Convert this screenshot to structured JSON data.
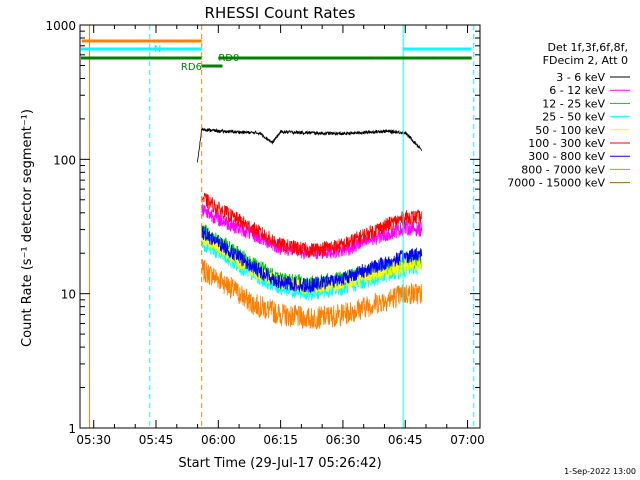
{
  "chart_data": {
    "type": "line",
    "title": "RHESSI Count Rates",
    "xlabel": "Start Time (29-Jul-17 05:26:42)",
    "ylabel": "Count Rate (s⁻¹ detector segment⁻¹)",
    "y_scale": "log",
    "xlim": [
      "05:26:42",
      "07:03:00"
    ],
    "ylim": [
      1,
      1000
    ],
    "x_ticks": [
      "05:30",
      "05:45",
      "06:00",
      "06:15",
      "06:30",
      "06:45",
      "07:00"
    ],
    "y_ticks": [
      "1",
      "10",
      "100",
      "1000"
    ],
    "grid": false,
    "legend_position": "top-right",
    "legend_header": [
      "Det 1f,3f,6f,8f,",
      "FDecim 2, Att 0"
    ],
    "footer_date": "1-Sep-2022 13:00",
    "series": [
      {
        "name": "3 - 6 keV",
        "color": "#000000",
        "x": [
          "05:55:00",
          "05:56:00",
          "06:00:00",
          "06:10:00",
          "06:13:00",
          "06:15:00",
          "06:30:00",
          "06:40:00",
          "06:45:00",
          "06:49:00"
        ],
        "values": [
          95,
          168,
          162,
          157,
          133,
          160,
          155,
          162,
          158,
          118
        ]
      },
      {
        "name": "6 - 12 keV",
        "color": "#ff00ff",
        "x": [
          "05:56:00",
          "06:00:00",
          "06:08:00",
          "06:15:00",
          "06:22:00",
          "06:30:00",
          "06:38:00",
          "06:45:00",
          "06:49:00"
        ],
        "values": [
          43,
          36,
          28,
          22,
          20,
          21,
          26,
          31,
          30
        ]
      },
      {
        "name": "12 - 25 keV",
        "color": "#00cc00",
        "x": [
          "05:56:00",
          "06:00:00",
          "06:08:00",
          "06:15:00",
          "06:22:00",
          "06:30:00",
          "06:38:00",
          "06:45:00",
          "06:49:00"
        ],
        "values": [
          30,
          25,
          17,
          13,
          12,
          13,
          15,
          17,
          18
        ]
      },
      {
        "name": "25 - 50 keV",
        "color": "#00ffff",
        "x": [
          "05:56:00",
          "06:00:00",
          "06:08:00",
          "06:15:00",
          "06:22:00",
          "06:30:00",
          "06:38:00",
          "06:45:00",
          "06:49:00"
        ],
        "values": [
          24,
          20,
          14,
          11,
          10,
          11,
          13,
          15,
          16
        ]
      },
      {
        "name": "50 - 100 keV",
        "color": "#ffff00",
        "x": [
          "05:56:00",
          "06:00:00",
          "06:08:00",
          "06:15:00",
          "06:22:00",
          "06:30:00",
          "06:38:00",
          "06:45:00",
          "06:49:00"
        ],
        "values": [
          26,
          22,
          15,
          12,
          11,
          12,
          14,
          16,
          17
        ]
      },
      {
        "name": "100 - 300 keV",
        "color": "#ff0000",
        "x": [
          "05:56:00",
          "06:00:00",
          "06:08:00",
          "06:15:00",
          "06:22:00",
          "06:30:00",
          "06:38:00",
          "06:45:00",
          "06:49:00"
        ],
        "values": [
          52,
          43,
          31,
          23,
          21,
          23,
          30,
          37,
          37
        ]
      },
      {
        "name": "300 - 800 keV",
        "color": "#0000ff",
        "x": [
          "05:56:00",
          "06:00:00",
          "06:08:00",
          "06:15:00",
          "06:22:00",
          "06:30:00",
          "06:38:00",
          "06:45:00",
          "06:49:00"
        ],
        "values": [
          29,
          24,
          16,
          12,
          11.5,
          13,
          16,
          19,
          20
        ]
      },
      {
        "name": "800 - 7000 keV",
        "color": "#ff8000",
        "x": [
          "05:56:00",
          "06:00:00",
          "06:08:00",
          "06:15:00",
          "06:22:00",
          "06:30:00",
          "06:38:00",
          "06:45:00",
          "06:49:00"
        ],
        "values": [
          15,
          13,
          8.5,
          7,
          6.5,
          7,
          8.5,
          10,
          10
        ]
      },
      {
        "name": "7000 - 15000 keV",
        "color": "#996600",
        "x": [],
        "values": []
      }
    ],
    "annotations": [
      {
        "text": "N",
        "color": "#00ffff"
      },
      {
        "text": "RD0",
        "color": "#008000"
      },
      {
        "text": "RD6",
        "color": "#008000"
      }
    ],
    "bars": [
      {
        "name": "saa",
        "color": "#ff8000",
        "segments": [
          [
            "05:27:10",
            "05:56:00"
          ]
        ]
      },
      {
        "name": "night",
        "color": "#00ffff",
        "segments": [
          [
            "05:26:42",
            "05:56:00"
          ],
          [
            "06:44:30",
            "07:01:00"
          ]
        ]
      },
      {
        "name": "data-gap",
        "color": "#008000",
        "segments": [
          [
            "05:26:42",
            "05:56:00"
          ],
          [
            "06:00:00",
            "06:37:30"
          ],
          [
            "06:37:30",
            "06:53:00"
          ],
          [
            "06:53:00",
            "07:01:00"
          ]
        ]
      },
      {
        "name": "rd6-flag",
        "color": "#008000",
        "segments": [
          [
            "05:56:00",
            "06:01:00"
          ]
        ]
      }
    ],
    "vertical_markers": [
      {
        "x": "05:26:42",
        "color": "#00ffff",
        "style": "solid"
      },
      {
        "x": "05:29:00",
        "color": "#ff8000",
        "style": "solid"
      },
      {
        "x": "05:43:30",
        "color": "#00ffff",
        "style": "dashed"
      },
      {
        "x": "05:56:00",
        "color": "#ff8000",
        "style": "dashed"
      },
      {
        "x": "06:44:30",
        "color": "#00ffff",
        "style": "solid"
      },
      {
        "x": "07:01:30",
        "color": "#00ffff",
        "style": "dashed"
      }
    ]
  }
}
